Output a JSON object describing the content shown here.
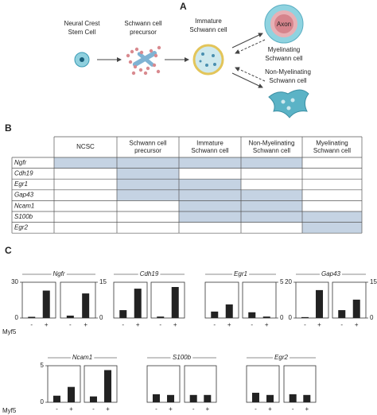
{
  "panel_a": {
    "label": "A",
    "ncsc": [
      "Neural Crest",
      "Stem Cell"
    ],
    "precursor": [
      "Schwann cell",
      "precursor"
    ],
    "immature": [
      "Immature",
      "Schwann cell"
    ],
    "axon": "Axon",
    "myelinating": [
      "Myelinating",
      "Schwann cell"
    ],
    "non_myelinating": [
      "Non-Myelinating",
      "Schwann cell"
    ]
  },
  "panel_b": {
    "label": "B",
    "shade_color": "#c5d3e3",
    "columns": [
      [
        "NCSC"
      ],
      [
        "Schwann cell",
        "precursor"
      ],
      [
        "Immature",
        "Schwann cell"
      ],
      [
        "Non-Myelinating",
        "Schwann cell"
      ],
      [
        "Myelinating",
        "Schwann cell"
      ]
    ],
    "rows": [
      {
        "gene": "Ngfr",
        "expressed": [
          true,
          true,
          true,
          true,
          false
        ]
      },
      {
        "gene": "Cdh19",
        "expressed": [
          false,
          true,
          false,
          false,
          false
        ]
      },
      {
        "gene": "Egr1",
        "expressed": [
          false,
          true,
          true,
          false,
          false
        ]
      },
      {
        "gene": "Gap43",
        "expressed": [
          false,
          true,
          true,
          true,
          false
        ]
      },
      {
        "gene": "Ncam1",
        "expressed": [
          false,
          false,
          true,
          true,
          false
        ]
      },
      {
        "gene": "S100b",
        "expressed": [
          false,
          false,
          true,
          true,
          true
        ]
      },
      {
        "gene": "Egr2",
        "expressed": [
          false,
          false,
          false,
          false,
          true
        ]
      }
    ]
  },
  "panel_c": {
    "label": "C",
    "bar_color": "#222222",
    "rows": [
      {
        "x_label": "Myf5",
        "charts": [
          {
            "type": "bar",
            "title": "Ngfr",
            "categories": [
              "-",
              "+"
            ],
            "panels": [
              {
                "values": [
                  1,
                  23
                ],
                "ylim": [
                  0,
                  30
                ],
                "yticks": [
                  0,
                  30
                ],
                "axis_side": "left"
              },
              {
                "values": [
                  1,
                  10.3
                ],
                "ylim": [
                  0,
                  15
                ],
                "yticks": [
                  0,
                  15
                ],
                "axis_side": "right"
              }
            ]
          },
          {
            "type": "bar",
            "title": "Cdh19",
            "categories": [
              "-",
              "+"
            ],
            "panels": [
              {
                "values": [
                  3.3,
                  12.3
                ],
                "ylim": [
                  0,
                  15
                ]
              },
              {
                "values": [
                  0.6,
                  13
                ],
                "ylim": [
                  0,
                  15
                ]
              }
            ]
          },
          {
            "type": "bar",
            "title": "Egr1",
            "categories": [
              "-",
              "+"
            ],
            "panels": [
              {
                "values": [
                  0.9,
                  1.9
                ],
                "ylim": [
                  0,
                  5
                ]
              },
              {
                "values": [
                  0.8,
                  0.2
                ],
                "ylim": [
                  0,
                  5
                ],
                "yticks": [
                  0,
                  5
                ],
                "axis_side": "right"
              }
            ]
          },
          {
            "type": "bar",
            "title": "Gap43",
            "categories": [
              "-",
              "+"
            ],
            "panels": [
              {
                "values": [
                  0.5,
                  15.6
                ],
                "ylim": [
                  0,
                  20
                ],
                "yticks": [
                  0,
                  20
                ],
                "axis_side": "left"
              },
              {
                "values": [
                  3.3,
                  7.7
                ],
                "ylim": [
                  0,
                  15
                ],
                "yticks": [
                  0,
                  15
                ],
                "axis_side": "right"
              }
            ]
          }
        ]
      },
      {
        "x_label": "Myf5",
        "charts": [
          {
            "type": "bar",
            "title": "Ncam1",
            "categories": [
              "-",
              "+"
            ],
            "panels": [
              {
                "values": [
                  0.9,
                  2.1
                ],
                "ylim": [
                  0,
                  5
                ],
                "yticks": [
                  0,
                  5
                ],
                "axis_side": "left"
              },
              {
                "values": [
                  0.8,
                  4.4
                ],
                "ylim": [
                  0,
                  5
                ]
              }
            ]
          },
          {
            "type": "bar",
            "title": "S100b",
            "categories": [
              "-",
              "+"
            ],
            "panels": [
              {
                "values": [
                  1.1,
                  1.0
                ],
                "ylim": [
                  0,
                  5
                ]
              },
              {
                "values": [
                  1.0,
                  1.0
                ],
                "ylim": [
                  0,
                  5
                ]
              }
            ]
          },
          {
            "type": "bar",
            "title": "Egr2",
            "categories": [
              "-",
              "+"
            ],
            "panels": [
              {
                "values": [
                  1.3,
                  1.0
                ],
                "ylim": [
                  0,
                  5
                ]
              },
              {
                "values": [
                  1.1,
                  1.0
                ],
                "ylim": [
                  0,
                  5
                ]
              }
            ]
          }
        ]
      }
    ]
  }
}
